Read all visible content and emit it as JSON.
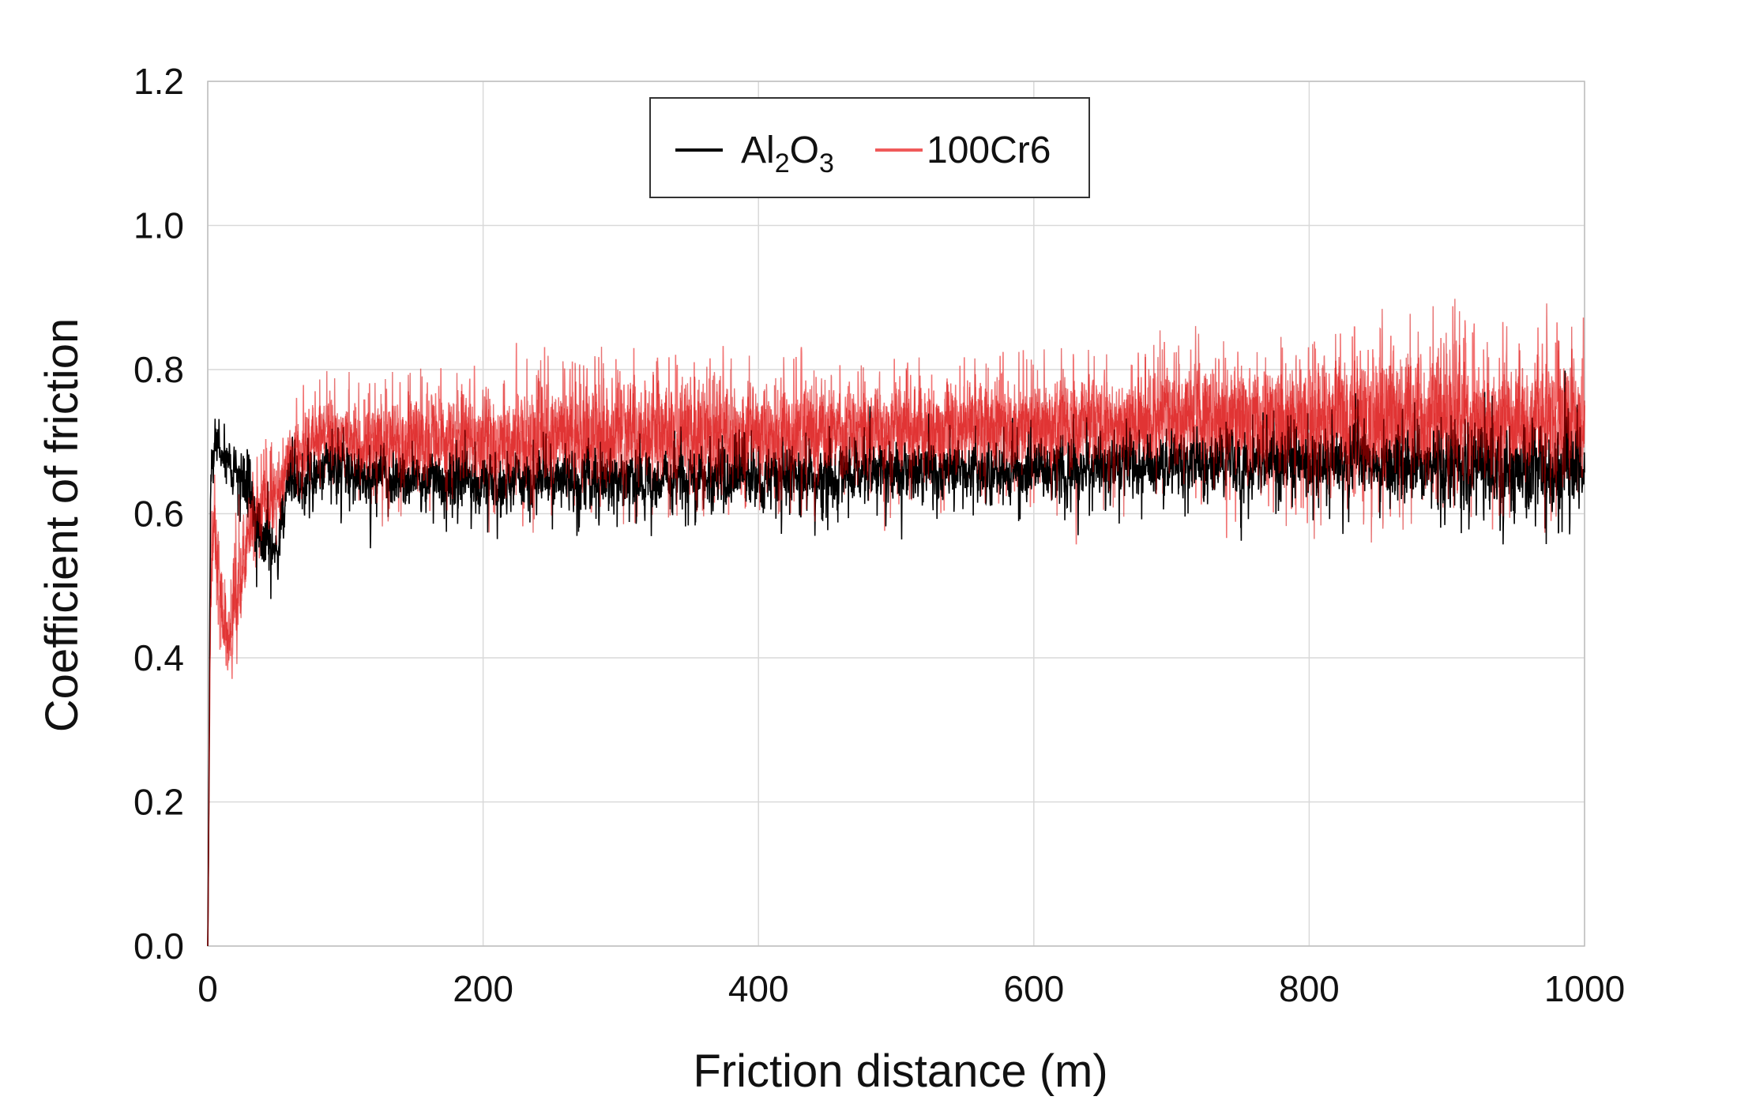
{
  "chart_data": {
    "type": "line",
    "title": "",
    "xlabel": "Friction distance (m)",
    "ylabel": "Coefficient of friction",
    "xlim": [
      0,
      1000
    ],
    "ylim": [
      0,
      1.2
    ],
    "xticks": [
      "0",
      "200",
      "400",
      "600",
      "800",
      "1000"
    ],
    "yticks": [
      "0.0",
      "0.2",
      "0.4",
      "0.6",
      "0.8",
      "1.0",
      "1.2"
    ],
    "grid": true,
    "legend": {
      "placement": "top-center"
    },
    "series": [
      {
        "name": "Al2O3",
        "label_main": "Al",
        "label_sub1": "2",
        "label_mid": "O",
        "label_sub2": "3",
        "color": "#000000",
        "envelope": {
          "x": [
            0,
            2,
            5,
            10,
            20,
            30,
            40,
            50,
            60,
            80,
            100,
            150,
            200,
            300,
            400,
            500,
            600,
            700,
            800,
            900,
            950,
            1000
          ],
          "mean": [
            0.0,
            0.65,
            0.7,
            0.68,
            0.67,
            0.64,
            0.55,
            0.55,
            0.64,
            0.66,
            0.66,
            0.65,
            0.65,
            0.65,
            0.65,
            0.66,
            0.66,
            0.67,
            0.67,
            0.66,
            0.66,
            0.66
          ],
          "min": [
            0.0,
            0.55,
            0.62,
            0.58,
            0.55,
            0.45,
            0.4,
            0.42,
            0.52,
            0.52,
            0.52,
            0.52,
            0.52,
            0.52,
            0.52,
            0.53,
            0.53,
            0.53,
            0.53,
            0.52,
            0.45,
            0.52
          ],
          "max": [
            0.0,
            0.76,
            0.83,
            0.78,
            0.78,
            0.76,
            0.7,
            0.7,
            0.75,
            0.77,
            0.76,
            0.76,
            0.76,
            0.76,
            0.77,
            0.78,
            0.78,
            0.8,
            0.82,
            0.83,
            0.86,
            0.84
          ]
        }
      },
      {
        "name": "100Cr6",
        "color": "#f05a5a",
        "envelope": {
          "x": [
            0,
            2,
            5,
            10,
            15,
            20,
            30,
            40,
            50,
            60,
            80,
            100,
            150,
            200,
            300,
            400,
            500,
            600,
            700,
            800,
            850,
            870,
            900,
            950,
            1000
          ],
          "mean": [
            0.0,
            0.55,
            0.58,
            0.45,
            0.4,
            0.45,
            0.58,
            0.6,
            0.62,
            0.68,
            0.7,
            0.7,
            0.7,
            0.7,
            0.71,
            0.71,
            0.72,
            0.72,
            0.73,
            0.74,
            0.74,
            0.74,
            0.73,
            0.73,
            0.73
          ],
          "min": [
            0.0,
            0.38,
            0.4,
            0.35,
            0.3,
            0.32,
            0.45,
            0.5,
            0.52,
            0.56,
            0.54,
            0.54,
            0.5,
            0.48,
            0.5,
            0.5,
            0.52,
            0.52,
            0.52,
            0.45,
            0.42,
            0.48,
            0.48,
            0.46,
            0.5
          ],
          "max": [
            0.0,
            0.75,
            0.76,
            0.72,
            0.68,
            0.72,
            0.75,
            0.76,
            0.78,
            0.8,
            0.86,
            0.84,
            0.86,
            0.88,
            0.93,
            0.9,
            0.88,
            0.9,
            0.93,
            0.95,
            1.0,
            1.02,
            0.97,
            0.98,
            0.96
          ]
        }
      }
    ]
  }
}
